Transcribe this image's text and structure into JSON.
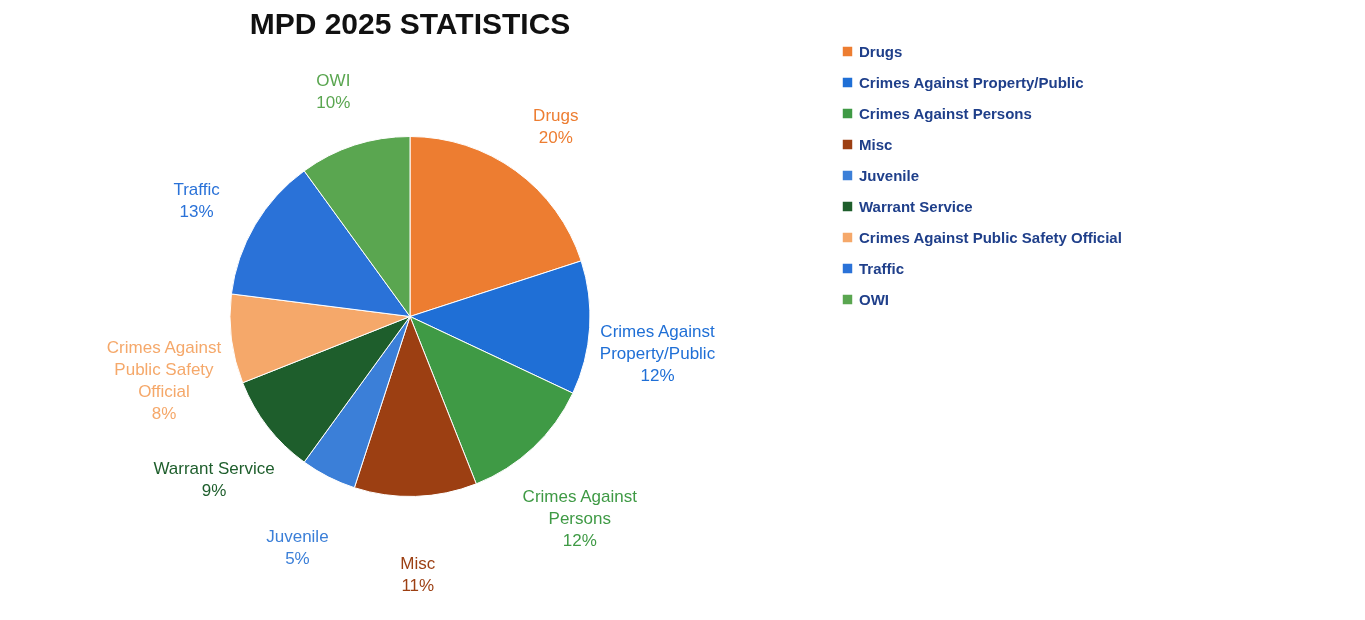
{
  "chart_data": {
    "type": "pie",
    "title": "MPD 2025 STATISTICS",
    "categories": [
      "Drugs",
      "Crimes Against Property/Public",
      "Crimes Against Persons",
      "Misc",
      "Juvenile",
      "Warrant Service",
      "Crimes Against Public Safety Official",
      "Traffic",
      "OWI"
    ],
    "values": [
      20,
      12,
      12,
      11,
      5,
      9,
      8,
      13,
      10
    ],
    "value_labels": [
      "20%",
      "12%",
      "12%",
      "11%",
      "5%",
      "9%",
      "8%",
      "13%",
      "10%"
    ],
    "colors": [
      "#ed7d31",
      "#1f6fd6",
      "#3f9a45",
      "#9c3f12",
      "#3b7fd8",
      "#1e5e2c",
      "#f5a86a",
      "#2a72d8",
      "#5aa650"
    ],
    "legend": "right"
  }
}
